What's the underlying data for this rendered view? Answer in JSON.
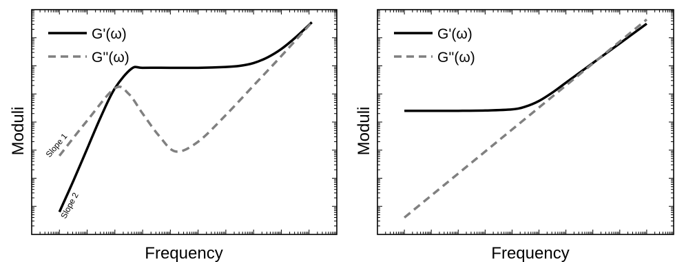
{
  "chart_data": [
    {
      "type": "line",
      "xlabel": "Frequency",
      "ylabel": "Moduli",
      "xscale": "log",
      "yscale": "log",
      "tick_labels_shown": false,
      "grid": false,
      "legend_position": "top-left",
      "annotations": [
        "Slope 1",
        "Slope 2"
      ],
      "xlim": [
        0,
        11
      ],
      "ylim": [
        0,
        8
      ],
      "series": [
        {
          "name": "G'(ω)",
          "style": "solid",
          "color": "#000000",
          "x": [
            1.0,
            1.5,
            2.0,
            2.5,
            3.0,
            3.6,
            4.0,
            5.0,
            6.0,
            7.0,
            7.5,
            8.0,
            8.5,
            9.0,
            9.5,
            10.1
          ],
          "y": [
            0.8,
            1.9,
            3.05,
            4.2,
            5.2,
            5.9,
            5.93,
            5.93,
            5.93,
            5.96,
            6.0,
            6.1,
            6.3,
            6.6,
            7.0,
            7.55
          ]
        },
        {
          "name": "G''(ω)",
          "style": "dashed",
          "color": "#808080",
          "x": [
            1.0,
            2.0,
            3.0,
            3.5,
            4.0,
            4.6,
            5.2,
            6.0,
            7.0,
            8.0,
            9.0,
            10.1
          ],
          "y": [
            2.8,
            4.05,
            5.2,
            5.0,
            4.3,
            3.5,
            2.95,
            3.3,
            4.25,
            5.3,
            6.35,
            7.55
          ]
        }
      ]
    },
    {
      "type": "line",
      "xlabel": "Frequency",
      "ylabel": "Moduli",
      "xscale": "log",
      "yscale": "log",
      "tick_labels_shown": false,
      "grid": false,
      "legend_position": "top-left",
      "xlim": [
        0,
        11
      ],
      "ylim": [
        0,
        8
      ],
      "series": [
        {
          "name": "G'(ω)",
          "style": "solid",
          "color": "#000000",
          "x": [
            1.0,
            2.0,
            3.0,
            4.0,
            5.0,
            5.5,
            6.0,
            6.5,
            7.0,
            8.0,
            9.0,
            10.0
          ],
          "y": [
            4.4,
            4.4,
            4.4,
            4.41,
            4.45,
            4.55,
            4.75,
            5.05,
            5.4,
            6.1,
            6.8,
            7.5
          ]
        },
        {
          "name": "G''(ω)",
          "style": "dashed",
          "color": "#808080",
          "x": [
            1.0,
            10.0
          ],
          "y": [
            0.6,
            7.65
          ]
        }
      ]
    }
  ]
}
